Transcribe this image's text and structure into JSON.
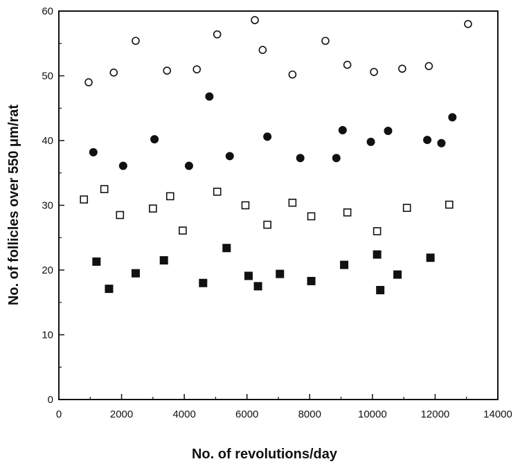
{
  "chart_data": {
    "type": "scatter",
    "title": "",
    "xlabel": "No. of revolutions/day",
    "ylabel": "No. of follicles over 550 μm/rat",
    "xlim": [
      0,
      14000
    ],
    "ylim": [
      0,
      60
    ],
    "x_ticks": [
      0,
      2000,
      4000,
      6000,
      8000,
      10000,
      12000,
      14000
    ],
    "x_tick_labels": [
      "0",
      "2000",
      "4000",
      "6000",
      "8000",
      "10000",
      "12000",
      "14000"
    ],
    "y_ticks": [
      0,
      10,
      20,
      30,
      40,
      50,
      60
    ],
    "y_tick_labels": [
      "0",
      "10",
      "20",
      "30",
      "40",
      "50",
      "60"
    ],
    "grid": false,
    "legend": "none",
    "series": [
      {
        "marker": "open-circle",
        "color": "#111111",
        "points": [
          {
            "x": 950,
            "y": 49
          },
          {
            "x": 1750,
            "y": 50.5
          },
          {
            "x": 2450,
            "y": 55.4
          },
          {
            "x": 3450,
            "y": 50.8
          },
          {
            "x": 4400,
            "y": 51
          },
          {
            "x": 5050,
            "y": 56.4
          },
          {
            "x": 6250,
            "y": 58.6
          },
          {
            "x": 6500,
            "y": 54
          },
          {
            "x": 7450,
            "y": 50.2
          },
          {
            "x": 8500,
            "y": 55.4
          },
          {
            "x": 9200,
            "y": 51.7
          },
          {
            "x": 10050,
            "y": 50.6
          },
          {
            "x": 10950,
            "y": 51.1
          },
          {
            "x": 11800,
            "y": 51.5
          },
          {
            "x": 13050,
            "y": 58
          }
        ]
      },
      {
        "marker": "filled-circle",
        "color": "#111111",
        "points": [
          {
            "x": 1100,
            "y": 38.2
          },
          {
            "x": 2050,
            "y": 36.1
          },
          {
            "x": 3050,
            "y": 40.2
          },
          {
            "x": 4150,
            "y": 36.1
          },
          {
            "x": 4800,
            "y": 46.8
          },
          {
            "x": 5450,
            "y": 37.6
          },
          {
            "x": 6650,
            "y": 40.6
          },
          {
            "x": 7700,
            "y": 37.3
          },
          {
            "x": 8850,
            "y": 37.3
          },
          {
            "x": 9050,
            "y": 41.6
          },
          {
            "x": 9950,
            "y": 39.8
          },
          {
            "x": 10500,
            "y": 41.5
          },
          {
            "x": 11750,
            "y": 40.1
          },
          {
            "x": 12200,
            "y": 39.6
          },
          {
            "x": 12550,
            "y": 43.6
          }
        ]
      },
      {
        "marker": "open-square",
        "color": "#111111",
        "points": [
          {
            "x": 800,
            "y": 30.9
          },
          {
            "x": 1450,
            "y": 32.5
          },
          {
            "x": 1950,
            "y": 28.5
          },
          {
            "x": 3000,
            "y": 29.5
          },
          {
            "x": 3550,
            "y": 31.4
          },
          {
            "x": 3950,
            "y": 26.1
          },
          {
            "x": 5050,
            "y": 32.1
          },
          {
            "x": 5950,
            "y": 30
          },
          {
            "x": 6650,
            "y": 27
          },
          {
            "x": 7450,
            "y": 30.4
          },
          {
            "x": 8050,
            "y": 28.3
          },
          {
            "x": 9200,
            "y": 28.9
          },
          {
            "x": 10150,
            "y": 26
          },
          {
            "x": 11100,
            "y": 29.6
          },
          {
            "x": 12450,
            "y": 30.1
          }
        ]
      },
      {
        "marker": "filled-square",
        "color": "#111111",
        "points": [
          {
            "x": 1200,
            "y": 21.3
          },
          {
            "x": 1600,
            "y": 17.1
          },
          {
            "x": 2450,
            "y": 19.5
          },
          {
            "x": 3350,
            "y": 21.5
          },
          {
            "x": 4600,
            "y": 18
          },
          {
            "x": 5350,
            "y": 23.4
          },
          {
            "x": 6050,
            "y": 19.1
          },
          {
            "x": 6350,
            "y": 17.5
          },
          {
            "x": 7050,
            "y": 19.4
          },
          {
            "x": 8050,
            "y": 18.3
          },
          {
            "x": 9100,
            "y": 20.8
          },
          {
            "x": 10150,
            "y": 22.4
          },
          {
            "x": 10250,
            "y": 16.9
          },
          {
            "x": 10800,
            "y": 19.3
          },
          {
            "x": 11850,
            "y": 21.9
          }
        ]
      }
    ]
  }
}
